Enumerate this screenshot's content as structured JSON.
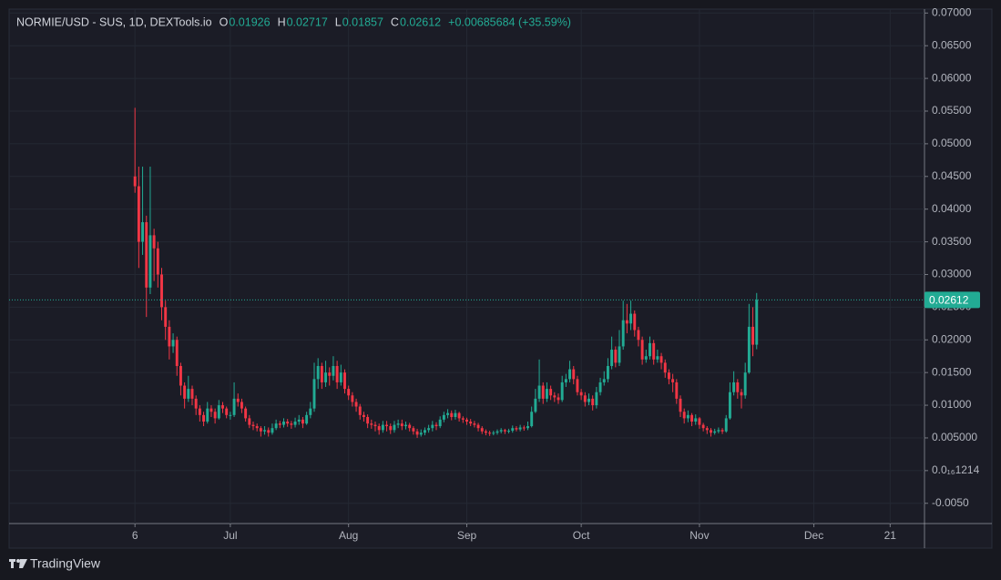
{
  "chart_data": {
    "type": "candlestick",
    "title": "NORMIE/USD - SUS, 1D, DEXTools.io",
    "ohlc_labels": [
      "O",
      "H",
      "L",
      "C"
    ],
    "change": "+0.00685684 (+35.59%)",
    "brand": "TradingView",
    "up_color": "#22ab94",
    "down_color": "#f23645",
    "grid": true,
    "last_price_line": true,
    "xlim": [
      -33,
      207
    ],
    "xticks": [
      {
        "value": 0,
        "label": "6"
      },
      {
        "value": 25,
        "label": "Jul"
      },
      {
        "value": 56,
        "label": "Aug"
      },
      {
        "value": 87,
        "label": "Sep"
      },
      {
        "value": 117,
        "label": "Oct"
      },
      {
        "value": 148,
        "label": "Nov"
      },
      {
        "value": 178,
        "label": "Dec"
      },
      {
        "value": 198,
        "label": "21"
      }
    ],
    "ylim": [
      -0.0081,
      0.0706
    ],
    "yticks": [
      {
        "value": 0.07,
        "label": "0.07000"
      },
      {
        "value": 0.065,
        "label": "0.06500"
      },
      {
        "value": 0.06,
        "label": "0.06000"
      },
      {
        "value": 0.055,
        "label": "0.05500"
      },
      {
        "value": 0.05,
        "label": "0.05000"
      },
      {
        "value": 0.045,
        "label": "0.04500"
      },
      {
        "value": 0.04,
        "label": "0.04000"
      },
      {
        "value": 0.035,
        "label": "0.03500"
      },
      {
        "value": 0.03,
        "label": "0.03000"
      },
      {
        "value": 0.025,
        "label": "0.02500"
      },
      {
        "value": 0.02,
        "label": "0.02000"
      },
      {
        "value": 0.015,
        "label": "0.01500"
      },
      {
        "value": 0.01,
        "label": "0.01000"
      },
      {
        "value": 0.005,
        "label": "0.005000"
      },
      {
        "value": 1.214e-17,
        "label": "0.0₁₆1214"
      },
      {
        "value": -0.005,
        "label": "-0.0050"
      }
    ],
    "open": [
      0.045,
      0.0435,
      0.035,
      0.038,
      0.028,
      0.036,
      0.034,
      0.03,
      0.025,
      0.022,
      0.019,
      0.02,
      0.016,
      0.013,
      0.011,
      0.0125,
      0.011,
      0.0095,
      0.0085,
      0.0075,
      0.0095,
      0.009,
      0.008,
      0.01,
      0.0095,
      0.0085,
      0.0085,
      0.011,
      0.0105,
      0.0095,
      0.008,
      0.007,
      0.0068,
      0.0065,
      0.006,
      0.0062,
      0.0058,
      0.0065,
      0.0072,
      0.007,
      0.0075,
      0.0072,
      0.007,
      0.0075,
      0.0078,
      0.0072,
      0.0085,
      0.0095,
      0.014,
      0.016,
      0.0135,
      0.015,
      0.0145,
      0.016,
      0.0135,
      0.015,
      0.0125,
      0.0115,
      0.0105,
      0.0098,
      0.0085,
      0.0082,
      0.0072,
      0.007,
      0.0068,
      0.0062,
      0.007,
      0.0068,
      0.0062,
      0.007,
      0.0072,
      0.0068,
      0.007,
      0.0065,
      0.006,
      0.0055,
      0.0058,
      0.0062,
      0.0065,
      0.007,
      0.0068,
      0.0078,
      0.0085,
      0.0088,
      0.0082,
      0.0088,
      0.008,
      0.0078,
      0.0075,
      0.0072,
      0.007,
      0.0065,
      0.006,
      0.0058,
      0.0057,
      0.0058,
      0.006,
      0.0062,
      0.006,
      0.0061,
      0.0065,
      0.0063,
      0.0066,
      0.0065,
      0.0068,
      0.009,
      0.011,
      0.013,
      0.011,
      0.0125,
      0.0115,
      0.0112,
      0.0108,
      0.0135,
      0.014,
      0.0155,
      0.014,
      0.012,
      0.0115,
      0.0105,
      0.011,
      0.01,
      0.012,
      0.0135,
      0.014,
      0.016,
      0.0185,
      0.0165,
      0.019,
      0.023,
      0.0225,
      0.024,
      0.0215,
      0.02,
      0.017,
      0.0175,
      0.0195,
      0.017,
      0.0175,
      0.0165,
      0.015,
      0.014,
      0.0135,
      0.011,
      0.009,
      0.008,
      0.0085,
      0.0075,
      0.008,
      0.007,
      0.0065,
      0.0062,
      0.0058,
      0.006,
      0.0062,
      0.006,
      0.008,
      0.012,
      0.0135,
      0.012,
      0.0115,
      0.015,
      0.022,
      0.01926
    ],
    "high": [
      0.0555,
      0.0465,
      0.0465,
      0.039,
      0.0465,
      0.037,
      0.035,
      0.031,
      0.026,
      0.023,
      0.021,
      0.0205,
      0.0165,
      0.0135,
      0.0145,
      0.013,
      0.0115,
      0.01,
      0.009,
      0.0105,
      0.01,
      0.0095,
      0.0108,
      0.0105,
      0.0098,
      0.009,
      0.0135,
      0.0118,
      0.011,
      0.0098,
      0.0085,
      0.0075,
      0.0072,
      0.0068,
      0.0068,
      0.0066,
      0.0072,
      0.0078,
      0.0076,
      0.008,
      0.0079,
      0.0076,
      0.0081,
      0.0085,
      0.0082,
      0.009,
      0.0105,
      0.0165,
      0.0172,
      0.0165,
      0.0168,
      0.0158,
      0.0175,
      0.0168,
      0.0162,
      0.0155,
      0.013,
      0.012,
      0.011,
      0.0102,
      0.009,
      0.0086,
      0.0078,
      0.0075,
      0.0072,
      0.0076,
      0.0076,
      0.0072,
      0.0076,
      0.0078,
      0.0078,
      0.0075,
      0.0073,
      0.0068,
      0.0064,
      0.0063,
      0.0066,
      0.007,
      0.0076,
      0.0074,
      0.0083,
      0.009,
      0.0094,
      0.0092,
      0.0093,
      0.009,
      0.0083,
      0.0081,
      0.0079,
      0.0076,
      0.0073,
      0.0068,
      0.0063,
      0.0061,
      0.0061,
      0.0063,
      0.0065,
      0.0064,
      0.0064,
      0.0069,
      0.0068,
      0.007,
      0.0069,
      0.0075,
      0.0098,
      0.0125,
      0.017,
      0.0135,
      0.0135,
      0.013,
      0.012,
      0.0118,
      0.0145,
      0.0148,
      0.0168,
      0.016,
      0.0145,
      0.0125,
      0.012,
      0.0118,
      0.0115,
      0.0128,
      0.0142,
      0.0152,
      0.0172,
      0.0205,
      0.019,
      0.0215,
      0.026,
      0.0255,
      0.026,
      0.0245,
      0.022,
      0.0205,
      0.0185,
      0.0205,
      0.02,
      0.0185,
      0.018,
      0.017,
      0.0155,
      0.0148,
      0.014,
      0.0115,
      0.0095,
      0.0092,
      0.0088,
      0.0086,
      0.0082,
      0.0073,
      0.0068,
      0.0065,
      0.0064,
      0.0066,
      0.0065,
      0.0085,
      0.0135,
      0.0152,
      0.014,
      0.0125,
      0.0165,
      0.0255,
      0.025,
      0.02717
    ],
    "low": [
      0.0425,
      0.031,
      0.033,
      0.0235,
      0.027,
      0.029,
      0.028,
      0.023,
      0.02,
      0.017,
      0.018,
      0.0145,
      0.0115,
      0.0095,
      0.0105,
      0.01,
      0.0085,
      0.0075,
      0.0068,
      0.0072,
      0.0082,
      0.0072,
      0.0078,
      0.0088,
      0.008,
      0.0078,
      0.0082,
      0.0098,
      0.0088,
      0.0075,
      0.0065,
      0.0062,
      0.006,
      0.0052,
      0.0055,
      0.0052,
      0.0055,
      0.0062,
      0.0065,
      0.0066,
      0.0067,
      0.0064,
      0.0066,
      0.007,
      0.0065,
      0.007,
      0.008,
      0.009,
      0.0125,
      0.0125,
      0.0128,
      0.013,
      0.0138,
      0.0125,
      0.013,
      0.0118,
      0.0108,
      0.0098,
      0.009,
      0.0078,
      0.0075,
      0.0065,
      0.0064,
      0.006,
      0.0055,
      0.0058,
      0.006,
      0.0056,
      0.0058,
      0.0065,
      0.0062,
      0.0063,
      0.006,
      0.0055,
      0.005,
      0.0052,
      0.0054,
      0.0058,
      0.006,
      0.0062,
      0.0065,
      0.0074,
      0.008,
      0.0077,
      0.0078,
      0.0075,
      0.0073,
      0.007,
      0.0068,
      0.0066,
      0.006,
      0.0056,
      0.0054,
      0.0053,
      0.0054,
      0.0055,
      0.0057,
      0.0056,
      0.0057,
      0.0058,
      0.006,
      0.006,
      0.0061,
      0.0062,
      0.0066,
      0.0088,
      0.0105,
      0.0102,
      0.0105,
      0.0108,
      0.0105,
      0.0102,
      0.0105,
      0.0128,
      0.0135,
      0.0132,
      0.0115,
      0.0108,
      0.0098,
      0.01,
      0.0092,
      0.0095,
      0.0115,
      0.013,
      0.0135,
      0.0155,
      0.0158,
      0.016,
      0.0185,
      0.021,
      0.0215,
      0.0205,
      0.019,
      0.0162,
      0.0165,
      0.017,
      0.0162,
      0.0165,
      0.0155,
      0.0142,
      0.0132,
      0.012,
      0.0102,
      0.0082,
      0.0072,
      0.0074,
      0.0068,
      0.007,
      0.0064,
      0.006,
      0.0056,
      0.0052,
      0.0055,
      0.0057,
      0.0056,
      0.0058,
      0.0078,
      0.0115,
      0.011,
      0.0095,
      0.011,
      0.0148,
      0.0175,
      0.01857
    ],
    "close": [
      0.0435,
      0.035,
      0.038,
      0.028,
      0.036,
      0.034,
      0.03,
      0.025,
      0.022,
      0.019,
      0.02,
      0.016,
      0.013,
      0.011,
      0.0125,
      0.011,
      0.0095,
      0.0085,
      0.0075,
      0.0095,
      0.009,
      0.008,
      0.01,
      0.0095,
      0.0085,
      0.0085,
      0.011,
      0.0105,
      0.0095,
      0.008,
      0.007,
      0.0068,
      0.0065,
      0.006,
      0.0062,
      0.0058,
      0.0065,
      0.0072,
      0.007,
      0.0075,
      0.0072,
      0.007,
      0.0075,
      0.0078,
      0.0072,
      0.0085,
      0.0095,
      0.014,
      0.016,
      0.0135,
      0.015,
      0.0145,
      0.016,
      0.0135,
      0.015,
      0.0125,
      0.0115,
      0.0105,
      0.0098,
      0.0085,
      0.0082,
      0.0072,
      0.007,
      0.0068,
      0.0062,
      0.007,
      0.0068,
      0.0062,
      0.007,
      0.0072,
      0.0068,
      0.007,
      0.0065,
      0.006,
      0.0055,
      0.0058,
      0.0062,
      0.0065,
      0.007,
      0.0068,
      0.0078,
      0.0085,
      0.0088,
      0.0082,
      0.0088,
      0.008,
      0.0078,
      0.0075,
      0.0072,
      0.007,
      0.0065,
      0.006,
      0.0058,
      0.0057,
      0.0058,
      0.006,
      0.0062,
      0.006,
      0.0061,
      0.0065,
      0.0063,
      0.0066,
      0.0065,
      0.0068,
      0.009,
      0.011,
      0.013,
      0.011,
      0.0125,
      0.0115,
      0.0112,
      0.0108,
      0.0135,
      0.014,
      0.0155,
      0.014,
      0.012,
      0.0115,
      0.0105,
      0.011,
      0.01,
      0.012,
      0.0135,
      0.014,
      0.016,
      0.0185,
      0.0165,
      0.019,
      0.023,
      0.0225,
      0.024,
      0.0215,
      0.02,
      0.017,
      0.0175,
      0.0195,
      0.017,
      0.0175,
      0.0165,
      0.015,
      0.014,
      0.0135,
      0.011,
      0.009,
      0.008,
      0.0085,
      0.0075,
      0.008,
      0.007,
      0.0065,
      0.0062,
      0.0058,
      0.006,
      0.0062,
      0.006,
      0.008,
      0.012,
      0.0135,
      0.012,
      0.0115,
      0.015,
      0.022,
      0.01926,
      0.02612
    ]
  }
}
